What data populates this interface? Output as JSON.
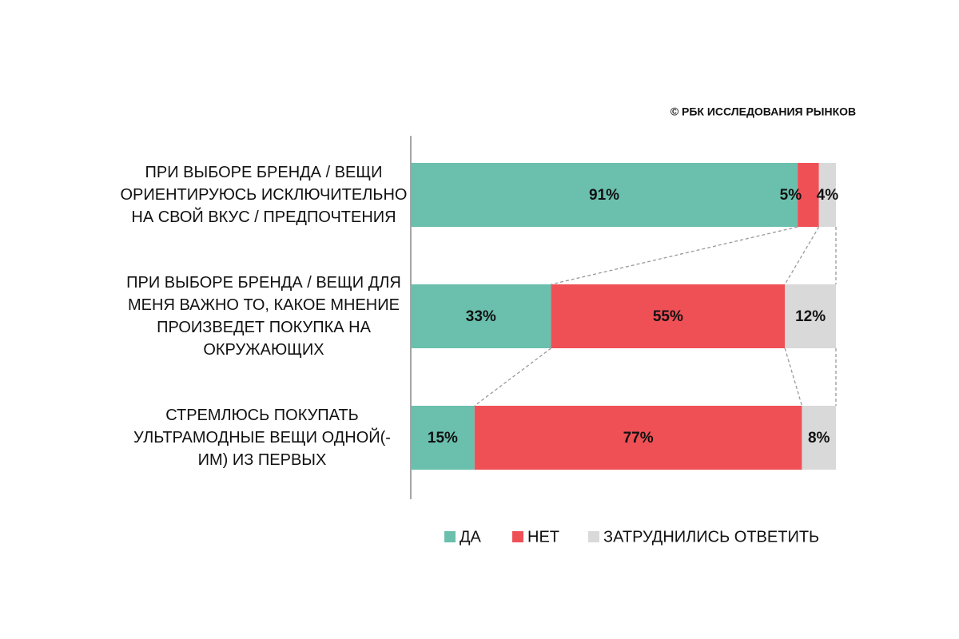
{
  "chart_data": {
    "type": "stacked-bar-horizontal",
    "source": "© РБК ИССЛЕДОВАНИЯ РЫНКОВ",
    "categories": [
      "ПРИ ВЫБОРЕ БРЕНДА / ВЕЩИ ОРИЕНТИРУЮСЬ ИСКЛЮЧИТЕЛЬНО НА СВОЙ ВКУС / ПРЕДПОЧТЕНИЯ",
      "ПРИ ВЫБОРЕ БРЕНДА / ВЕЩИ ДЛЯ МЕНЯ ВАЖНО ТО, КАКОЕ МНЕНИЕ ПРОИЗВЕДЕТ ПОКУПКА НА ОКРУЖАЮЩИХ",
      "СТРЕМЛЮСЬ ПОКУПАТЬ УЛЬТРАМОДНЫЕ ВЕЩИ ОДНОЙ(-ИМ) ИЗ ПЕРВЫХ"
    ],
    "series": [
      {
        "name": "ДА",
        "color": "#6abfad",
        "values": [
          91,
          33,
          15
        ],
        "value_labels": [
          "91%",
          "33%",
          "15%"
        ]
      },
      {
        "name": "НЕТ",
        "color": "#ef5056",
        "values": [
          5,
          55,
          77
        ],
        "value_labels": [
          "5%",
          "55%",
          "77%"
        ]
      },
      {
        "name": "ЗАТРУДНИЛИСЬ ОТВЕТИТЬ",
        "color": "#d9d9d9",
        "values": [
          4,
          12,
          8
        ],
        "value_labels": [
          "4%",
          "12%",
          "8%"
        ]
      }
    ],
    "xlim": [
      0,
      100
    ],
    "legend": "bottom"
  }
}
